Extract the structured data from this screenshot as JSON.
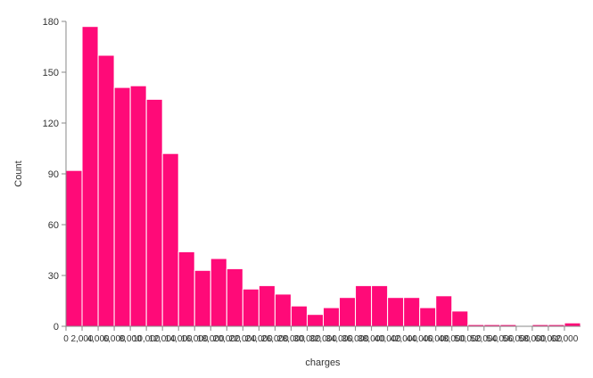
{
  "chart_data": {
    "type": "bar",
    "title": "",
    "xlabel": "charges",
    "ylabel": "Count",
    "ylim": [
      0,
      180
    ],
    "yticks": [
      0,
      30,
      60,
      90,
      120,
      150,
      180
    ],
    "x_tick_labels": [
      "0",
      "2,000",
      "4,000",
      "6,000",
      "8,000",
      "10,000",
      "12,000",
      "14,000",
      "16,000",
      "18,000",
      "20,000",
      "22,000",
      "24,000",
      "26,000",
      "28,000",
      "30,000",
      "32,000",
      "34,000",
      "36,000",
      "38,000",
      "40,000",
      "42,000",
      "44,000",
      "46,000",
      "48,000",
      "50,000",
      "52,000",
      "54,000",
      "56,000",
      "58,000",
      "60,000",
      "62,000"
    ],
    "bin_width": 2000,
    "bins_start": [
      0,
      2000,
      4000,
      6000,
      8000,
      10000,
      12000,
      14000,
      16000,
      18000,
      20000,
      22000,
      24000,
      26000,
      28000,
      30000,
      32000,
      34000,
      36000,
      38000,
      40000,
      42000,
      44000,
      46000,
      48000,
      50000,
      52000,
      54000,
      56000,
      58000,
      60000,
      62000
    ],
    "values": [
      92,
      177,
      160,
      141,
      142,
      134,
      102,
      44,
      33,
      40,
      34,
      22,
      24,
      19,
      12,
      7,
      11,
      17,
      24,
      24,
      17,
      17,
      11,
      18,
      9,
      1,
      1,
      1,
      0,
      1,
      1,
      2
    ],
    "color": "#ff0a78",
    "grid": false,
    "legend": "none"
  }
}
